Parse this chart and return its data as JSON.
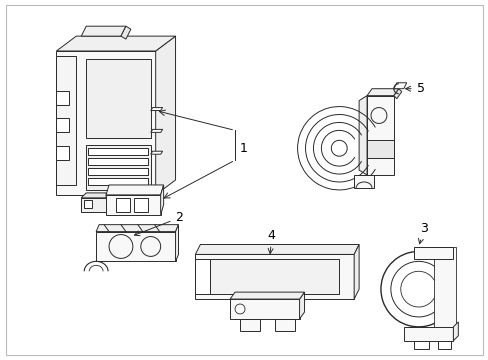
{
  "background_color": "#ffffff",
  "line_color": "#2a2a2a",
  "label_color": "#000000",
  "figsize": [
    4.89,
    3.6
  ],
  "dpi": 100,
  "label_fontsize": 9,
  "border": true
}
